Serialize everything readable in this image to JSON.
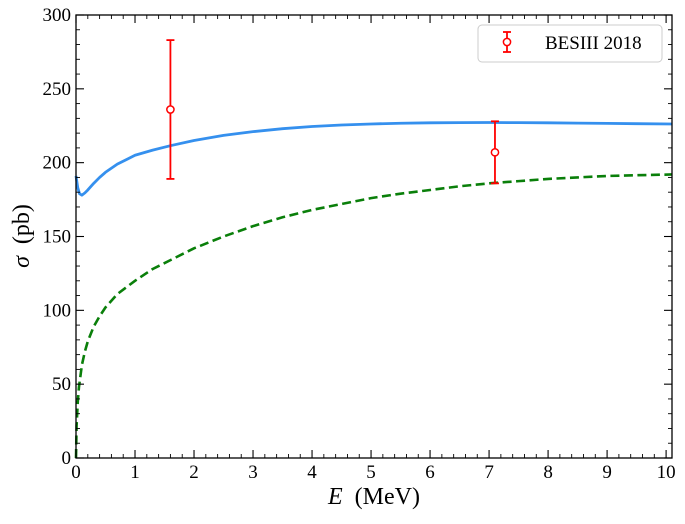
{
  "chart_data": {
    "type": "line",
    "title": "",
    "xlabel_var": "E",
    "xlabel_unit": "(MeV)",
    "ylabel_var": "σ",
    "ylabel_unit": "(pb)",
    "xlim": [
      0,
      10.1
    ],
    "ylim": [
      0,
      300
    ],
    "xticks": [
      0,
      1,
      2,
      3,
      4,
      5,
      6,
      7,
      8,
      9,
      10
    ],
    "yticks": [
      0,
      50,
      100,
      150,
      200,
      250,
      300
    ],
    "x_minor_step": 0.2,
    "y_minor_step": 10,
    "grid": false,
    "legend_position": "top-right",
    "series": [
      {
        "style": "solid",
        "color": "#3590EE",
        "x": [
          0.0,
          0.03,
          0.06,
          0.1,
          0.15,
          0.2,
          0.3,
          0.4,
          0.5,
          0.7,
          1.0,
          1.3,
          1.6,
          2.0,
          2.5,
          3.0,
          3.5,
          4.0,
          4.5,
          5.0,
          5.5,
          6.0,
          6.5,
          7.0,
          7.5,
          8.0,
          8.5,
          9.0,
          9.5,
          10.1
        ],
        "y": [
          191,
          183,
          179,
          178,
          179.5,
          181.5,
          186,
          190,
          193.5,
          199,
          205,
          208.5,
          211.5,
          215,
          218.5,
          221,
          223,
          224.5,
          225.5,
          226.2,
          226.7,
          227,
          227.1,
          227.2,
          227.1,
          227,
          226.8,
          226.6,
          226.4,
          226.2
        ]
      },
      {
        "style": "dashed",
        "color": "#0A7F0A",
        "x": [
          0.0,
          0.01,
          0.03,
          0.05,
          0.1,
          0.15,
          0.2,
          0.3,
          0.4,
          0.5,
          0.7,
          1.0,
          1.3,
          1.6,
          2.0,
          2.5,
          3.0,
          3.5,
          4.0,
          4.5,
          5.0,
          5.5,
          6.0,
          6.5,
          7.0,
          7.5,
          8.0,
          8.5,
          9.0,
          9.5,
          10.1
        ],
        "y": [
          0,
          22,
          38,
          48,
          63,
          72,
          79,
          89,
          96,
          102,
          111,
          120,
          128,
          134,
          142,
          150,
          157,
          163,
          168,
          172,
          176,
          179,
          181.5,
          184,
          186,
          187.5,
          189,
          190,
          191,
          191.5,
          192
        ]
      }
    ],
    "data_points": {
      "name": "BESIII 2018",
      "color": "#FF0000",
      "x": [
        1.6,
        7.1
      ],
      "y": [
        236,
        207
      ],
      "y_err_low": [
        189,
        186
      ],
      "y_err_high": [
        283,
        228
      ]
    }
  }
}
